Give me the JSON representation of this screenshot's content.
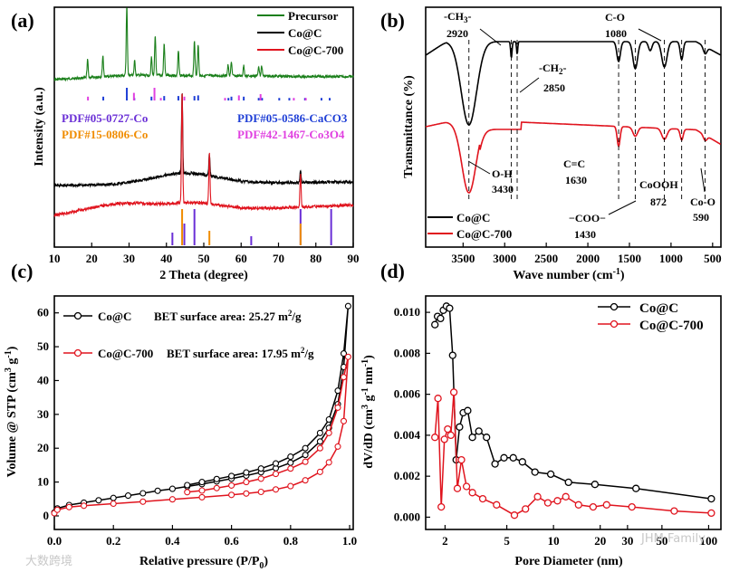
{
  "watermark": {
    "left": "大数跨境",
    "right": "JHM Family"
  },
  "chart_data": [
    {
      "panel": "(a)",
      "type": "line",
      "xlabel": "2 Theta (degree)",
      "ylabel": "Intensity (a.u.)",
      "xlim": [
        10,
        90
      ],
      "xticks": [
        "10",
        "20",
        "30",
        "40",
        "50",
        "60",
        "70",
        "80",
        "90"
      ],
      "series": [
        {
          "name": "Precursor",
          "color": "#1a7f1a",
          "peaks": [
            [
              18.9,
              0.25
            ],
            [
              23.0,
              0.3
            ],
            [
              29.4,
              1.0
            ],
            [
              31.5,
              0.2
            ],
            [
              36.0,
              0.25
            ],
            [
              37.0,
              0.55
            ],
            [
              39.4,
              0.45
            ],
            [
              43.2,
              0.35
            ],
            [
              47.5,
              0.5
            ],
            [
              48.5,
              0.45
            ],
            [
              56.5,
              0.15
            ],
            [
              57.4,
              0.2
            ],
            [
              60.7,
              0.15
            ],
            [
              64.7,
              0.15
            ],
            [
              65.5,
              0.15
            ]
          ]
        },
        {
          "name": "Co@C",
          "color": "#000000",
          "peaks": [
            [
              44.2,
              1.0
            ],
            [
              51.5,
              0.25
            ],
            [
              75.9,
              0.15
            ]
          ]
        },
        {
          "name": "Co@C-700",
          "color": "#e0141e",
          "peaks": [
            [
              44.2,
              1.0
            ],
            [
              51.5,
              0.45
            ],
            [
              75.9,
              0.3
            ]
          ]
        }
      ],
      "references": [
        {
          "name": "PDF#05-0727-Co",
          "color": "#6a2fd6",
          "lines": [
            [
              41.6,
              0.35
            ],
            [
              44.8,
              0.6
            ],
            [
              47.5,
              1.0
            ],
            [
              62.7,
              0.25
            ],
            [
              75.9,
              1.0
            ],
            [
              84.1,
              1.0
            ]
          ]
        },
        {
          "name": "PDF#15-0806-Co",
          "color": "#f08c00",
          "lines": [
            [
              44.2,
              1.0
            ],
            [
              51.5,
              0.4
            ],
            [
              75.9,
              0.6
            ]
          ]
        },
        {
          "name": "PDF#05-0586-CaCO3",
          "color": "#1f3fd6",
          "lines": [
            [
              23.1,
              0.3
            ],
            [
              29.4,
              1.0
            ],
            [
              31.4,
              0.2
            ],
            [
              36.0,
              0.3
            ],
            [
              39.4,
              0.35
            ],
            [
              43.2,
              0.35
            ],
            [
              47.5,
              0.35
            ],
            [
              48.5,
              0.4
            ],
            [
              56.6,
              0.2
            ],
            [
              57.4,
              0.3
            ],
            [
              60.7,
              0.3
            ],
            [
              64.7,
              0.2
            ],
            [
              65.6,
              0.2
            ],
            [
              70.2,
              0.2
            ],
            [
              72.9,
              0.2
            ],
            [
              77.1,
              0.2
            ],
            [
              81.5,
              0.2
            ],
            [
              83.7,
              0.2
            ]
          ]
        },
        {
          "name": "PDF#42-1467-Co3O4",
          "color": "#e040e0",
          "lines": [
            [
              19.0,
              0.3
            ],
            [
              31.3,
              0.6
            ],
            [
              36.8,
              1.0
            ],
            [
              38.5,
              0.2
            ],
            [
              44.8,
              0.3
            ],
            [
              55.7,
              0.2
            ],
            [
              59.4,
              0.4
            ],
            [
              65.2,
              0.5
            ],
            [
              74.1,
              0.2
            ],
            [
              77.3,
              0.2
            ]
          ]
        }
      ]
    },
    {
      "panel": "(b)",
      "type": "line",
      "xlabel": "Wave number (cm",
      "xlabel_sup": "-1",
      "xlabel_end": ")",
      "ylabel": "Transmittance (%)",
      "xlim": [
        3950,
        400
      ],
      "xticks": [
        "3500",
        "3000",
        "2500",
        "2000",
        "1500",
        "1000",
        "500"
      ],
      "series": [
        {
          "name": "Co@C",
          "color": "#000000"
        },
        {
          "name": "Co@C-700",
          "color": "#e0141e"
        }
      ],
      "annotations": [
        {
          "text": "-CH3-",
          "sub": "3",
          "value": "2920"
        },
        {
          "text": "-CH2-",
          "value": "2850"
        },
        {
          "text": "C-O",
          "value": "1080"
        },
        {
          "text": "O-H",
          "value": "3430"
        },
        {
          "text": "C=C",
          "value": "1630"
        },
        {
          "text": "−COO−",
          "value": "1430"
        },
        {
          "text": "CoOOH",
          "value": "872"
        },
        {
          "text": "Co-O",
          "value": "590"
        }
      ]
    },
    {
      "panel": "(c)",
      "type": "line",
      "xlabel": "Relative pressure (P/P",
      "xlabel_sub": "0",
      "xlabel_end": ")",
      "ylabel": "Volume @ STP (cm",
      "xlim": [
        0.0,
        1.0
      ],
      "ylim": [
        0,
        65
      ],
      "xticks": [
        "0.0",
        "0.2",
        "0.4",
        "0.6",
        "0.8",
        "1.0"
      ],
      "yticks": [
        "0",
        "10",
        "20",
        "30",
        "40",
        "50",
        "60"
      ],
      "series": [
        {
          "name": "Co@C",
          "bet": "BET surface area: 25.27 m",
          "color": "#000000",
          "adsorption": [
            [
              0.0,
              1.0
            ],
            [
              0.01,
              2.2
            ],
            [
              0.05,
              3.2
            ],
            [
              0.1,
              3.9
            ],
            [
              0.15,
              4.6
            ],
            [
              0.2,
              5.3
            ],
            [
              0.25,
              6.0
            ],
            [
              0.3,
              6.7
            ],
            [
              0.35,
              7.4
            ],
            [
              0.4,
              8.0
            ],
            [
              0.45,
              8.7
            ],
            [
              0.5,
              9.4
            ],
            [
              0.55,
              10.2
            ],
            [
              0.6,
              11.0
            ],
            [
              0.65,
              11.9
            ],
            [
              0.7,
              12.9
            ],
            [
              0.75,
              14.1
            ],
            [
              0.8,
              15.7
            ],
            [
              0.85,
              18.0
            ],
            [
              0.9,
              22.0
            ],
            [
              0.93,
              26.0
            ],
            [
              0.96,
              33.0
            ],
            [
              0.98,
              44.0
            ],
            [
              0.995,
              62.0
            ]
          ],
          "desorption": [
            [
              0.995,
              62.0
            ],
            [
              0.98,
              48.0
            ],
            [
              0.96,
              37.0
            ],
            [
              0.93,
              28.5
            ],
            [
              0.9,
              24.5
            ],
            [
              0.85,
              20.0
            ],
            [
              0.8,
              17.5
            ],
            [
              0.75,
              15.5
            ],
            [
              0.7,
              14.0
            ],
            [
              0.65,
              12.8
            ],
            [
              0.6,
              11.8
            ],
            [
              0.55,
              10.9
            ],
            [
              0.5,
              10.0
            ],
            [
              0.45,
              9.1
            ]
          ]
        },
        {
          "name": "Co@C-700",
          "bet": "BET surface area: 17.95 m",
          "color": "#e0141e",
          "adsorption": [
            [
              0.0,
              0.8
            ],
            [
              0.01,
              1.8
            ],
            [
              0.05,
              2.6
            ],
            [
              0.1,
              3.0
            ],
            [
              0.2,
              3.6
            ],
            [
              0.3,
              4.2
            ],
            [
              0.4,
              4.9
            ],
            [
              0.5,
              5.5
            ],
            [
              0.6,
              6.2
            ],
            [
              0.65,
              6.6
            ],
            [
              0.7,
              7.1
            ],
            [
              0.75,
              7.8
            ],
            [
              0.8,
              8.8
            ],
            [
              0.85,
              10.5
            ],
            [
              0.9,
              13.0
            ],
            [
              0.93,
              15.8
            ],
            [
              0.96,
              20.5
            ],
            [
              0.98,
              28.0
            ],
            [
              0.995,
              47.0
            ]
          ],
          "desorption": [
            [
              0.995,
              47.0
            ],
            [
              0.98,
              41.0
            ],
            [
              0.96,
              32.0
            ],
            [
              0.93,
              24.5
            ],
            [
              0.9,
              20.0
            ],
            [
              0.85,
              16.0
            ],
            [
              0.8,
              14.0
            ],
            [
              0.75,
              12.4
            ],
            [
              0.7,
              11.0
            ],
            [
              0.65,
              10.0
            ],
            [
              0.6,
              9.0
            ],
            [
              0.55,
              8.2
            ],
            [
              0.5,
              7.5
            ],
            [
              0.45,
              7.0
            ]
          ]
        }
      ]
    },
    {
      "panel": "(d)",
      "type": "line",
      "xlabel": "Pore Diameter (nm)",
      "ylabel": "dV/dD (cm",
      "xscale": "log",
      "xlim": [
        1.5,
        120
      ],
      "ylim": [
        -0.0006,
        0.0108
      ],
      "xticks": [
        "2",
        "5",
        "10",
        "20",
        "30",
        "50",
        "100"
      ],
      "yticks": [
        "0.000",
        "0.002",
        "0.004",
        "0.006",
        "0.008",
        "0.010"
      ],
      "series": [
        {
          "name": "Co@C",
          "color": "#000000",
          "points": [
            [
              1.72,
              0.0094
            ],
            [
              1.79,
              0.0098
            ],
            [
              1.87,
              0.0097
            ],
            [
              1.95,
              0.0101
            ],
            [
              2.04,
              0.0103
            ],
            [
              2.14,
              0.0102
            ],
            [
              2.24,
              0.0079
            ],
            [
              2.36,
              0.0028
            ],
            [
              2.48,
              0.0044
            ],
            [
              2.62,
              0.0051
            ],
            [
              2.8,
              0.0052
            ],
            [
              3.0,
              0.0039
            ],
            [
              3.3,
              0.0042
            ],
            [
              3.7,
              0.0039
            ],
            [
              4.2,
              0.0026
            ],
            [
              4.8,
              0.0029
            ],
            [
              5.5,
              0.0029
            ],
            [
              6.3,
              0.0027
            ],
            [
              7.6,
              0.0022
            ],
            [
              9.6,
              0.0021
            ],
            [
              12.5,
              0.0017
            ],
            [
              18.5,
              0.0016
            ],
            [
              34.0,
              0.0014
            ],
            [
              104,
              0.0009
            ]
          ]
        },
        {
          "name": "Co@C-700",
          "color": "#e0141e",
          "points": [
            [
              1.72,
              0.0039
            ],
            [
              1.8,
              0.0058
            ],
            [
              1.89,
              0.0005
            ],
            [
              1.98,
              0.0038
            ],
            [
              2.08,
              0.0043
            ],
            [
              2.18,
              0.004
            ],
            [
              2.28,
              0.0061
            ],
            [
              2.4,
              0.0014
            ],
            [
              2.55,
              0.0028
            ],
            [
              2.75,
              0.0015
            ],
            [
              3.0,
              0.0012
            ],
            [
              3.5,
              0.0009
            ],
            [
              4.3,
              0.0006
            ],
            [
              5.6,
              0.0001
            ],
            [
              6.6,
              0.0004
            ],
            [
              7.9,
              0.001
            ],
            [
              9.2,
              0.0007
            ],
            [
              10.6,
              0.0008
            ],
            [
              12.0,
              0.001
            ],
            [
              14.5,
              0.0006
            ],
            [
              18.0,
              0.0005
            ],
            [
              22.0,
              0.0006
            ],
            [
              32.0,
              0.0005
            ],
            [
              60.0,
              0.0003
            ],
            [
              104,
              0.0002
            ]
          ]
        }
      ]
    }
  ]
}
